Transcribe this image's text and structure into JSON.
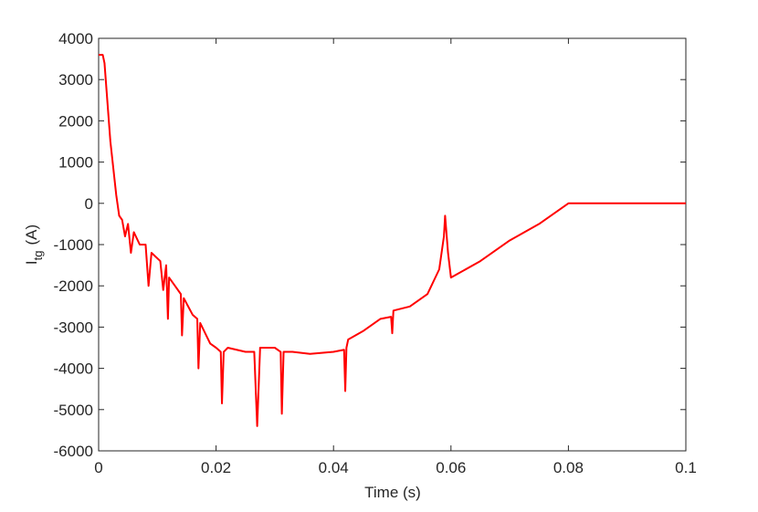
{
  "chart_data": {
    "type": "line",
    "xlabel": "Time (s)",
    "ylabel": {
      "text": "I",
      "subscript": "tg",
      "suffix": "(A)"
    },
    "xlim": [
      0,
      0.1
    ],
    "ylim": [
      -6000,
      4000
    ],
    "xticks": [
      0,
      0.02,
      0.04,
      0.06,
      0.08,
      0.1
    ],
    "yticks": [
      -6000,
      -5000,
      -4000,
      -3000,
      -2000,
      -1000,
      0,
      1000,
      2000,
      3000,
      4000
    ],
    "grid": false,
    "series": [
      {
        "color": "#ff0000",
        "x": [
          0,
          0.0007,
          0.001,
          0.002,
          0.003,
          0.0035,
          0.004,
          0.0045,
          0.005,
          0.0055,
          0.006,
          0.007,
          0.008,
          0.0085,
          0.009,
          0.0105,
          0.011,
          0.0115,
          0.0118,
          0.012,
          0.013,
          0.014,
          0.0142,
          0.0145,
          0.016,
          0.0168,
          0.017,
          0.0173,
          0.019,
          0.02,
          0.0208,
          0.021,
          0.0213,
          0.022,
          0.025,
          0.0265,
          0.027,
          0.0275,
          0.03,
          0.031,
          0.0312,
          0.0315,
          0.033,
          0.036,
          0.04,
          0.0418,
          0.042,
          0.0422,
          0.0425,
          0.045,
          0.048,
          0.0498,
          0.05,
          0.0502,
          0.053,
          0.056,
          0.058,
          0.0588,
          0.059,
          0.0595,
          0.06,
          0.065,
          0.07,
          0.075,
          0.08,
          0.09,
          0.1
        ],
        "values": [
          3600,
          3600,
          3400,
          1500,
          200,
          -300,
          -400,
          -800,
          -500,
          -1200,
          -700,
          -1000,
          -1000,
          -2000,
          -1200,
          -1400,
          -2100,
          -1500,
          -2800,
          -1800,
          -2000,
          -2200,
          -3200,
          -2300,
          -2700,
          -2800,
          -4000,
          -2900,
          -3400,
          -3500,
          -3600,
          -4850,
          -3600,
          -3500,
          -3600,
          -3600,
          -5400,
          -3500,
          -3500,
          -3600,
          -5100,
          -3600,
          -3600,
          -3650,
          -3600,
          -3550,
          -4550,
          -3500,
          -3300,
          -3100,
          -2800,
          -2750,
          -3150,
          -2600,
          -2500,
          -2200,
          -1600,
          -800,
          -300,
          -1200,
          -1800,
          -1400,
          -900,
          -500,
          0,
          0,
          0
        ]
      }
    ]
  }
}
